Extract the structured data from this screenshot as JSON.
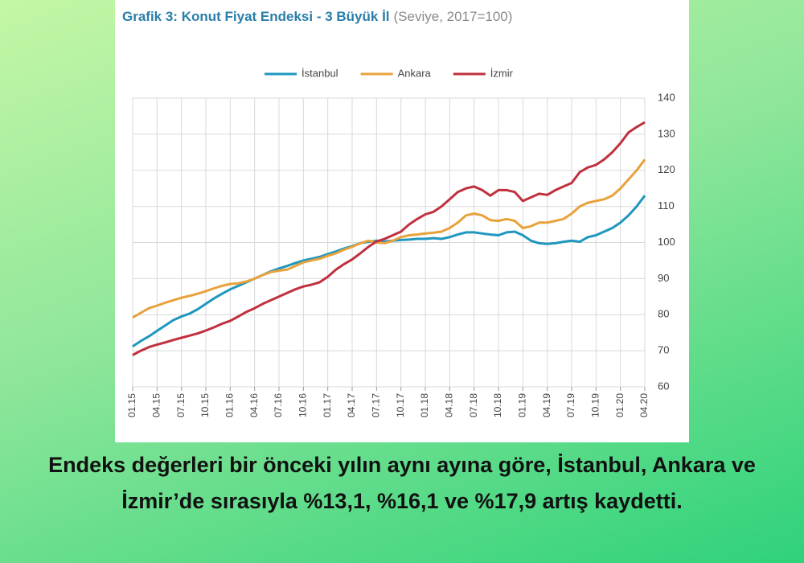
{
  "chart_data": {
    "type": "line",
    "title": "Grafik 3: Konut Fiyat Endeksi - 3 Büyük İl",
    "subtitle": "(Seviye, 2017=100)",
    "categories": [
      "01.15",
      null,
      null,
      "04.15",
      null,
      null,
      "07.15",
      null,
      null,
      "10.15",
      null,
      null,
      "01.16",
      null,
      null,
      "04.16",
      null,
      null,
      "07.16",
      null,
      null,
      "10.16",
      null,
      null,
      "01.17",
      null,
      null,
      "04.17",
      null,
      null,
      "07.17",
      null,
      null,
      "10.17",
      null,
      null,
      "01.18",
      null,
      null,
      "04.18",
      null,
      null,
      "07.18",
      null,
      null,
      "10.18",
      null,
      null,
      "01.19",
      null,
      null,
      "04.19",
      null,
      null,
      "07.19",
      null,
      null,
      "10.19",
      null,
      null,
      "01.20",
      null,
      null,
      "04.20"
    ],
    "series": [
      {
        "name": "İstanbul",
        "color": "#1f97bf",
        "values": [
          71.2,
          72.7,
          74,
          75.5,
          77,
          78.5,
          79.5,
          80.3,
          81.5,
          83,
          84.5,
          85.8,
          87,
          88,
          89,
          90,
          91,
          92,
          92.8,
          93.5,
          94.3,
          95,
          95.5,
          96,
          96.8,
          97.5,
          98.3,
          99,
          99.8,
          100.2,
          100.5,
          100.3,
          100.5,
          100.7,
          100.8,
          101,
          101,
          101.2,
          101,
          101.5,
          102.2,
          102.8,
          102.8,
          102.5,
          102.2,
          102,
          102.8,
          103,
          102,
          100.5,
          99.8,
          99.6,
          99.8,
          100.2,
          100.5,
          100.2,
          101.5,
          102,
          103,
          104,
          105.5,
          107.5,
          110,
          113
        ]
      },
      {
        "name": "Ankara",
        "color": "#e8a23c",
        "values": [
          79.2,
          80.5,
          81.8,
          82.5,
          83.3,
          84,
          84.7,
          85.2,
          85.8,
          86.5,
          87.3,
          88,
          88.5,
          88.7,
          89.2,
          90,
          91,
          91.8,
          92.2,
          92.5,
          93.5,
          94.5,
          95,
          95.5,
          96.3,
          97,
          98,
          98.8,
          99.8,
          100.5,
          100,
          99.8,
          100.5,
          101.5,
          102,
          102.2,
          102.5,
          102.7,
          103,
          104,
          105.5,
          107.5,
          108,
          107.5,
          106.2,
          106,
          106.5,
          106,
          104,
          104.5,
          105.5,
          105.5,
          106,
          106.5,
          108,
          110,
          111,
          111.5,
          112,
          113,
          115,
          117.5,
          120,
          123
        ]
      },
      {
        "name": "İzmir",
        "color": "#c0303e",
        "values": [
          68.8,
          70,
          71,
          71.7,
          72.3,
          73,
          73.6,
          74.2,
          74.8,
          75.6,
          76.5,
          77.5,
          78.3,
          79.5,
          80.8,
          81.8,
          83,
          84,
          85,
          86,
          87,
          87.8,
          88.3,
          89,
          90.5,
          92.5,
          94,
          95.3,
          97,
          98.8,
          100.3,
          101,
          102,
          103,
          105,
          106.5,
          107.8,
          108.5,
          110,
          112,
          114,
          115,
          115.5,
          114.5,
          113,
          114.5,
          114.5,
          114,
          111.5,
          112.5,
          113.5,
          113.2,
          114.5,
          115.5,
          116.5,
          119.5,
          120.8,
          121.5,
          123,
          125,
          127.5,
          130.5,
          132,
          133.3
        ]
      }
    ],
    "ylim": [
      60,
      140
    ],
    "yticks": [
      60,
      70,
      80,
      90,
      100,
      110,
      120,
      130,
      140
    ],
    "grid": true
  },
  "caption": "Endeks değerleri bir önceki yılın aynı ayına göre, İstanbul, Ankara ve İzmir’de sırasıyla %13,1, %16,1 ve %17,9 artış kaydetti."
}
